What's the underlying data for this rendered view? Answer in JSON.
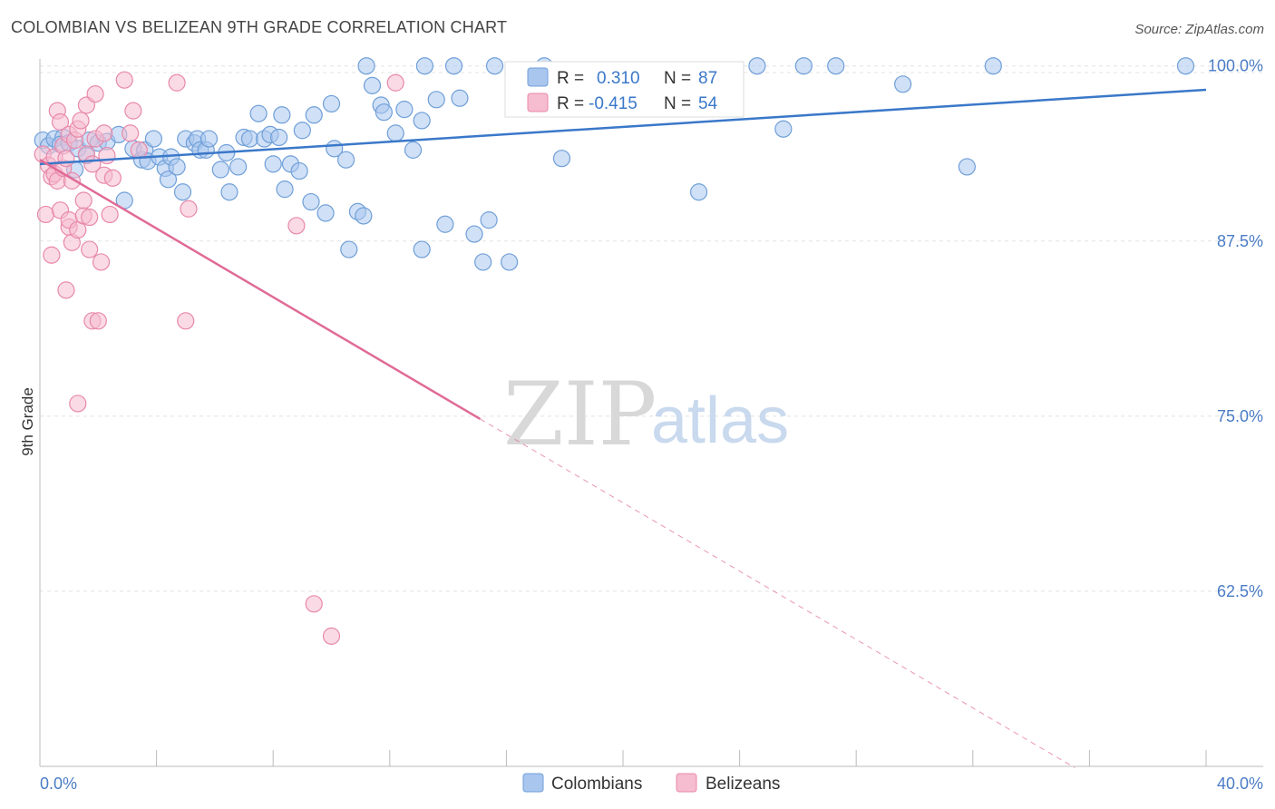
{
  "header": {
    "title": "COLOMBIAN VS BELIZEAN 9TH GRADE CORRELATION CHART",
    "source": "Source: ZipAtlas.com"
  },
  "watermark": {
    "zip": "ZIP",
    "atlas": "atlas"
  },
  "colors": {
    "colombians_fill": "#a9c6ee",
    "colombians_stroke": "#6f9fd8",
    "colombians_line": "#3a78c9",
    "belizeans_fill": "#f6bcd0",
    "belizeans_stroke": "#e889aa",
    "belizeans_line": "#e06a96",
    "value_text": "#3a78c9",
    "grid": "#e4e4e4"
  },
  "legend": {
    "rows": [
      {
        "r_label": "R =",
        "r_value": "0.310",
        "n_label": "N =",
        "n_value": "87"
      },
      {
        "r_label": "R =",
        "r_value": "-0.415",
        "n_label": "N =",
        "n_value": "54"
      }
    ]
  },
  "bottom_legend": {
    "items": [
      "Colombians",
      "Belizeans"
    ]
  },
  "chart_data": {
    "type": "scatter",
    "title": "COLOMBIAN VS BELIZEAN 9TH GRADE CORRELATION CHART",
    "xlabel": "",
    "ylabel": "9th Grade",
    "xlim": [
      0,
      40
    ],
    "ylim": [
      50,
      100.5
    ],
    "x_tick_labels": [
      "0.0%",
      "40.0%"
    ],
    "y_ticks": [
      62.5,
      75.0,
      87.5,
      100.0
    ],
    "y_tick_labels": [
      "62.5%",
      "75.0%",
      "87.5%",
      "100.0%"
    ],
    "legend_placement": "top-center",
    "grid": true,
    "series": [
      {
        "name": "Colombians",
        "R": 0.31,
        "N": 87,
        "trend": {
          "x": [
            0,
            40
          ],
          "y": [
            93.0,
            98.3
          ]
        },
        "points": [
          [
            0.1,
            94.7
          ],
          [
            0.3,
            94.3
          ],
          [
            0.5,
            94.8
          ],
          [
            0.8,
            94.9
          ],
          [
            0.7,
            94.4
          ],
          [
            1.0,
            94.5
          ],
          [
            1.2,
            92.6
          ],
          [
            1.3,
            94.1
          ],
          [
            1.7,
            94.7
          ],
          [
            1.6,
            93.6
          ],
          [
            2.0,
            94.5
          ],
          [
            2.3,
            94.6
          ],
          [
            2.7,
            95.1
          ],
          [
            2.9,
            90.4
          ],
          [
            3.2,
            94.1
          ],
          [
            3.5,
            93.3
          ],
          [
            3.6,
            94.0
          ],
          [
            3.7,
            93.2
          ],
          [
            3.9,
            94.8
          ],
          [
            4.1,
            93.5
          ],
          [
            4.3,
            92.7
          ],
          [
            4.4,
            91.9
          ],
          [
            4.5,
            93.5
          ],
          [
            4.7,
            92.8
          ],
          [
            4.9,
            91.0
          ],
          [
            5.0,
            94.8
          ],
          [
            5.3,
            94.5
          ],
          [
            5.4,
            94.8
          ],
          [
            5.5,
            94.0
          ],
          [
            5.7,
            94.0
          ],
          [
            5.8,
            94.8
          ],
          [
            6.2,
            92.6
          ],
          [
            6.4,
            93.8
          ],
          [
            6.5,
            91.0
          ],
          [
            6.8,
            92.8
          ],
          [
            7.0,
            94.9
          ],
          [
            7.2,
            94.8
          ],
          [
            7.5,
            96.6
          ],
          [
            7.7,
            94.8
          ],
          [
            7.9,
            95.1
          ],
          [
            8.0,
            93.0
          ],
          [
            8.2,
            94.9
          ],
          [
            8.3,
            96.5
          ],
          [
            8.4,
            91.2
          ],
          [
            8.6,
            93.0
          ],
          [
            8.9,
            92.5
          ],
          [
            9.0,
            95.4
          ],
          [
            9.3,
            90.3
          ],
          [
            9.4,
            96.5
          ],
          [
            9.8,
            89.5
          ],
          [
            10.0,
            97.3
          ],
          [
            10.1,
            94.1
          ],
          [
            10.5,
            93.3
          ],
          [
            10.6,
            86.9
          ],
          [
            10.9,
            89.6
          ],
          [
            11.1,
            89.3
          ],
          [
            11.2,
            100.0
          ],
          [
            11.4,
            98.6
          ],
          [
            11.7,
            97.2
          ],
          [
            11.8,
            96.7
          ],
          [
            12.2,
            95.2
          ],
          [
            12.5,
            96.9
          ],
          [
            12.8,
            94.0
          ],
          [
            13.1,
            96.1
          ],
          [
            13.1,
            86.9
          ],
          [
            13.2,
            100.0
          ],
          [
            13.6,
            97.6
          ],
          [
            13.9,
            88.7
          ],
          [
            14.2,
            100.0
          ],
          [
            14.4,
            97.7
          ],
          [
            14.9,
            88.0
          ],
          [
            15.2,
            86.0
          ],
          [
            15.4,
            89.0
          ],
          [
            15.6,
            100.0
          ],
          [
            16.1,
            86.0
          ],
          [
            17.3,
            100.0
          ],
          [
            17.9,
            93.4
          ],
          [
            21.6,
            98.0
          ],
          [
            22.6,
            91.0
          ],
          [
            24.6,
            100.0
          ],
          [
            25.5,
            95.5
          ],
          [
            26.2,
            100.0
          ],
          [
            27.3,
            100.0
          ],
          [
            29.6,
            98.7
          ],
          [
            31.8,
            92.8
          ],
          [
            32.7,
            100.0
          ],
          [
            39.3,
            100.0
          ]
        ]
      },
      {
        "name": "Belizeans",
        "R": -0.415,
        "N": 54,
        "trend": {
          "x": [
            0,
            15.1
          ],
          "y": [
            93.3,
            74.8
          ]
        },
        "trend_dashed": {
          "x": [
            15.1,
            35.5
          ],
          "y": [
            74.8,
            49.9
          ]
        },
        "points": [
          [
            0.1,
            93.7
          ],
          [
            0.2,
            89.4
          ],
          [
            0.3,
            92.9
          ],
          [
            0.4,
            92.1
          ],
          [
            0.4,
            86.5
          ],
          [
            0.5,
            92.3
          ],
          [
            0.5,
            93.5
          ],
          [
            0.6,
            96.8
          ],
          [
            0.6,
            91.8
          ],
          [
            0.7,
            96.0
          ],
          [
            0.7,
            89.7
          ],
          [
            0.8,
            94.3
          ],
          [
            0.8,
            92.7
          ],
          [
            0.9,
            84.0
          ],
          [
            0.9,
            93.4
          ],
          [
            1.0,
            95.1
          ],
          [
            1.0,
            88.5
          ],
          [
            1.0,
            89.0
          ],
          [
            1.1,
            91.8
          ],
          [
            1.1,
            87.4
          ],
          [
            1.2,
            94.7
          ],
          [
            1.3,
            75.9
          ],
          [
            1.3,
            95.5
          ],
          [
            1.3,
            88.3
          ],
          [
            1.4,
            96.1
          ],
          [
            1.5,
            89.3
          ],
          [
            1.5,
            90.4
          ],
          [
            1.6,
            97.2
          ],
          [
            1.6,
            93.7
          ],
          [
            1.7,
            86.9
          ],
          [
            1.7,
            89.2
          ],
          [
            1.8,
            81.8
          ],
          [
            1.8,
            93.0
          ],
          [
            1.9,
            94.8
          ],
          [
            1.9,
            98.0
          ],
          [
            2.0,
            81.8
          ],
          [
            2.1,
            86.0
          ],
          [
            2.2,
            95.2
          ],
          [
            2.2,
            92.2
          ],
          [
            2.3,
            93.6
          ],
          [
            2.4,
            89.4
          ],
          [
            2.5,
            92.0
          ],
          [
            2.9,
            99.0
          ],
          [
            3.1,
            95.2
          ],
          [
            3.2,
            96.8
          ],
          [
            3.4,
            94.0
          ],
          [
            4.7,
            98.8
          ],
          [
            5.0,
            81.8
          ],
          [
            5.1,
            89.8
          ],
          [
            8.8,
            88.6
          ],
          [
            9.4,
            61.6
          ],
          [
            10.0,
            59.3
          ],
          [
            12.2,
            98.8
          ],
          [
            17.0,
            97.4
          ]
        ]
      }
    ]
  }
}
